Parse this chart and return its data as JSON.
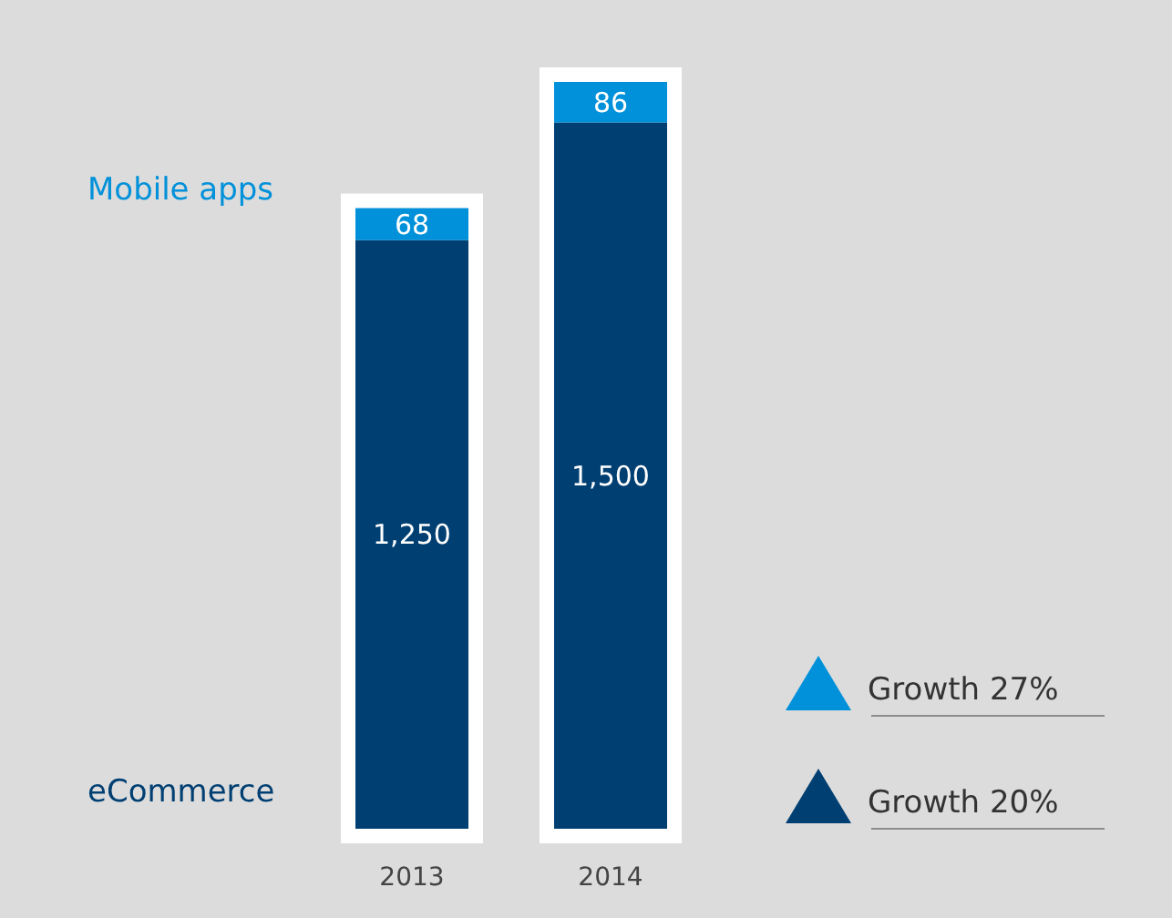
{
  "chart_data": {
    "type": "bar",
    "stacked": true,
    "categories": [
      "2013",
      "2014"
    ],
    "series": [
      {
        "name": "eCommerce",
        "color": "#003f72",
        "values": [
          1250,
          1500
        ],
        "value_labels": [
          "1,250",
          "1,500"
        ]
      },
      {
        "name": "Mobile apps",
        "color": "#0091da",
        "values": [
          68,
          86
        ],
        "value_labels": [
          "68",
          "86"
        ]
      }
    ],
    "annotations": [
      "Growth 27%",
      "Growth 20%"
    ]
  }
}
